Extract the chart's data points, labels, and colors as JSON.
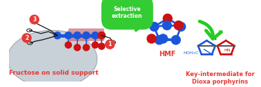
{
  "bg_color": "#ffffff",
  "figsize": [
    3.78,
    1.27
  ],
  "dpi": 100,
  "fructose_text": "Fructose on solid support",
  "fructose_text_color": "#e53935",
  "fructose_text_size": 6.5,
  "hmf_text": "HMF",
  "hmf_text_color": "#e53935",
  "hmf_text_size": 7.0,
  "selective_text": "Selective\nextraction",
  "selective_text_color": "#ffffff",
  "selective_text_size": 5.5,
  "selective_box_color": "#33cc33",
  "key_text1": "Key-intermediate for",
  "key_text2": "Dioxa porphyrins",
  "key_text_color": "#e53935",
  "key_text_size": 6.0,
  "blue": "#1a56db",
  "red": "#cc1111",
  "green": "#22cc22",
  "black": "#111111",
  "num_bg": "#e53935",
  "num_color": "#ffffff"
}
